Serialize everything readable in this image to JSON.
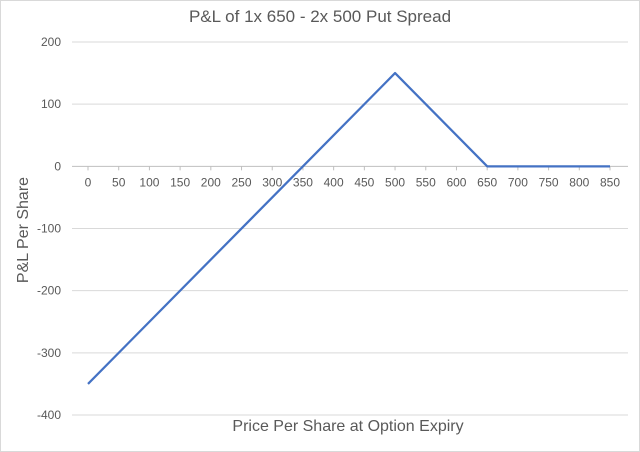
{
  "chart_data": {
    "type": "line",
    "title": "P&L of 1x 650 - 2x 500 Put Spread",
    "xlabel": "Price Per Share at Option Expiry",
    "ylabel": "P&L Per Share",
    "x_ticks": [
      "0",
      "50",
      "100",
      "150",
      "200",
      "250",
      "300",
      "350",
      "400",
      "450",
      "500",
      "550",
      "600",
      "650",
      "700",
      "750",
      "800",
      "850"
    ],
    "y_ticks": [
      "200",
      "100",
      "0",
      "-100",
      "-200",
      "-300",
      "-400"
    ],
    "ylim": [
      -400,
      200
    ],
    "xlim": [
      0,
      850
    ],
    "grid": true,
    "legend": "none",
    "line_color": "#4472c4",
    "series": [
      {
        "x": [
          0,
          500,
          650,
          850
        ],
        "y": [
          -350,
          150,
          0,
          0
        ]
      }
    ]
  }
}
